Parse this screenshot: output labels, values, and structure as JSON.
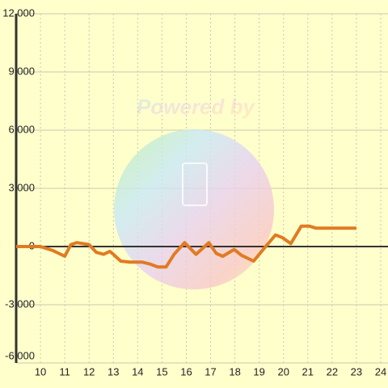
{
  "chart_data": {
    "type": "line",
    "annotation": "Powered by",
    "x": [
      9,
      10,
      10.5,
      11,
      11.25,
      11.5,
      12,
      12.3,
      12.6,
      12.85,
      13,
      13.3,
      13.67,
      14.17,
      14.5,
      14.83,
      15.17,
      15.5,
      15.93,
      16.4,
      16.93,
      17.23,
      17.5,
      17.97,
      18.27,
      18.77,
      19.2,
      19.67,
      19.97,
      20.3,
      20.73,
      21.07,
      21.33,
      23
    ],
    "series": [
      {
        "color": "#e07b22",
        "values": [
          0,
          0,
          -200,
          -500,
          100,
          200,
          100,
          -300,
          -400,
          -250,
          -400,
          -750,
          -800,
          -800,
          -900,
          -1050,
          -1050,
          -400,
          200,
          -400,
          200,
          -350,
          -500,
          -150,
          -450,
          -750,
          -100,
          600,
          450,
          150,
          1050,
          1050,
          950,
          950
        ]
      }
    ],
    "xlim": [
      9,
      24.3
    ],
    "xticks": [
      10,
      11,
      12,
      13,
      14,
      15,
      16,
      17,
      18,
      19,
      20,
      21,
      22,
      23,
      24
    ],
    "ylim": [
      -6000,
      12000
    ],
    "yticks": [
      {
        "value": 12000,
        "label": "12,000"
      },
      {
        "value": 9000,
        "label": "9,000"
      },
      {
        "value": 6000,
        "label": "6,000"
      },
      {
        "value": 3000,
        "label": "3,000"
      },
      0,
      {
        "value": -3000,
        "label": "-3,000"
      },
      {
        "value": -6000,
        "label": "-6,000"
      }
    ],
    "grid": true
  }
}
